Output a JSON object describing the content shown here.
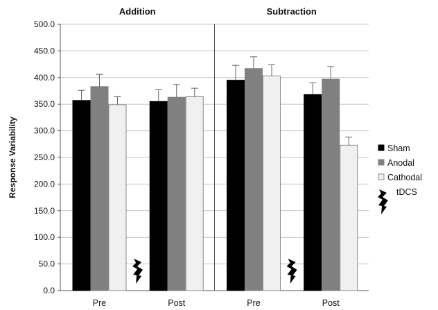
{
  "chart_data": {
    "type": "bar",
    "ylabel": "Response Variability",
    "ylim": [
      0,
      500
    ],
    "y_ticks": [
      "0.0",
      "50.0",
      "100.0",
      "150.0",
      "200.0",
      "250.0",
      "300.0",
      "350.0",
      "400.0",
      "450.0",
      "500.0"
    ],
    "grid": true,
    "legend_position": "right",
    "panels": [
      {
        "title": "Addition",
        "categories": [
          "Pre",
          "Post"
        ],
        "series": [
          {
            "name": "Sham",
            "color": "#000000",
            "values": [
              357,
              355
            ],
            "errors": [
              19,
              22
            ]
          },
          {
            "name": "Anodal",
            "color": "#808080",
            "values": [
              383,
              363
            ],
            "errors": [
              23,
              24
            ]
          },
          {
            "name": "Cathodal",
            "color": "#f0f0f0",
            "values": [
              349,
              364
            ],
            "errors": [
              15,
              16
            ]
          }
        ],
        "tdcs_between": [
          "Pre",
          "Post"
        ]
      },
      {
        "title": "Subtraction",
        "categories": [
          "Pre",
          "Post"
        ],
        "series": [
          {
            "name": "Sham",
            "color": "#000000",
            "values": [
              395,
              368
            ],
            "errors": [
              28,
              22
            ]
          },
          {
            "name": "Anodal",
            "color": "#808080",
            "values": [
              417,
              397
            ],
            "errors": [
              22,
              24
            ]
          },
          {
            "name": "Cathodal",
            "color": "#f0f0f0",
            "values": [
              403,
              273
            ],
            "errors": [
              21,
              15
            ]
          }
        ],
        "tdcs_between": [
          "Pre",
          "Post"
        ]
      }
    ],
    "legend": [
      {
        "label": "Sham",
        "kind": "swatch",
        "color": "#000000"
      },
      {
        "label": "Anodal",
        "kind": "swatch",
        "color": "#808080"
      },
      {
        "label": "Cathodal",
        "kind": "swatch",
        "color": "#f0f0f0"
      },
      {
        "label": "tDCS",
        "kind": "lightning-icon"
      }
    ]
  }
}
